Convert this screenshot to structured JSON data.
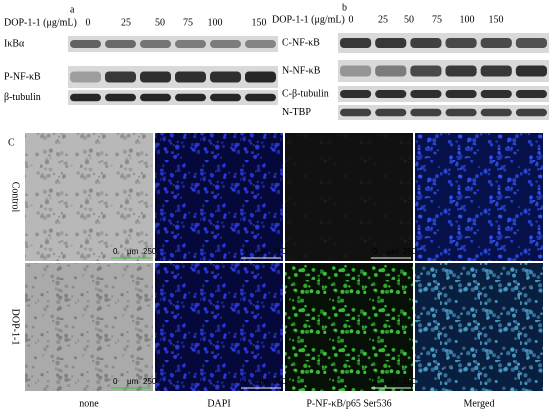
{
  "panel_a": {
    "label": "a",
    "treatment_label": "DOP-1-1 (μg/mL)",
    "doses": [
      "0",
      "25",
      "50",
      "75",
      "100",
      "150"
    ],
    "rows": [
      "IκBα",
      "P-NF-κB",
      "β-tubulin"
    ]
  },
  "panel_b": {
    "label": "b",
    "treatment_label": "DOP-1-1 (μg/mL)",
    "doses": [
      "0",
      "25",
      "50",
      "75",
      "100",
      "150"
    ],
    "rows": [
      "C-NF-κB",
      "N-NF-κB",
      "C-β-tubulin",
      "N-TBP"
    ]
  },
  "panel_c": {
    "label": "C",
    "rows": [
      "Control",
      "DOP-1-1"
    ],
    "columns": [
      "none",
      "DAPI",
      "P-NF-κB/p65 Ser536",
      "Merged"
    ],
    "scale_bar": {
      "start": "0",
      "unit": "μm",
      "end": "250"
    }
  }
}
